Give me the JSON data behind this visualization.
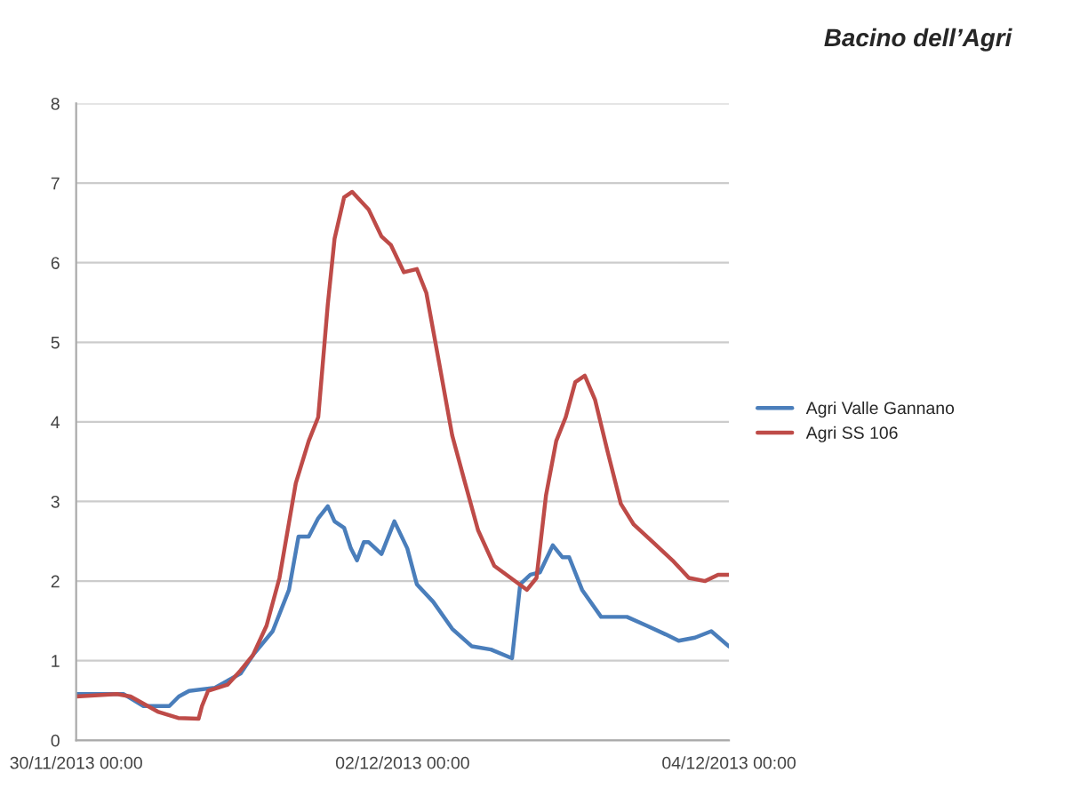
{
  "chart_data": {
    "type": "line",
    "title": "Bacino dell’Agri",
    "xlim": [
      "2013-11-30T00:00",
      "2013-12-04T00:00"
    ],
    "xticks": [
      {
        "value": "2013-11-30T00:00",
        "label": "30/11/2013 00:00"
      },
      {
        "value": "2013-12-02T00:00",
        "label": "02/12/2013 00:00"
      },
      {
        "value": "2013-12-04T00:00",
        "label": "04/12/2013 00:00"
      }
    ],
    "ylim": [
      0,
      8
    ],
    "yticks": [
      0,
      1,
      2,
      3,
      4,
      5,
      6,
      7,
      8
    ],
    "grid": "y",
    "legend": "right",
    "marker": "none",
    "line_style": "solid",
    "series": [
      {
        "name": "Agri Valle Gannano",
        "color": "#4a7ebb",
        "x": [
          "2013-11-30T00:00",
          "2013-11-30T07:00",
          "2013-11-30T09:54",
          "2013-11-30T13:42",
          "2013-11-30T15:06",
          "2013-11-30T16:36",
          "2013-11-30T20:24",
          "2013-12-01T00:12",
          "2013-12-01T02:00",
          "2013-12-01T04:54",
          "2013-12-01T07:18",
          "2013-12-01T08:42",
          "2013-12-01T10:12",
          "2013-12-01T11:36",
          "2013-12-01T13:00",
          "2013-12-01T14:00",
          "2013-12-01T15:24",
          "2013-12-01T16:24",
          "2013-12-01T17:18",
          "2013-12-01T18:18",
          "2013-12-01T19:00",
          "2013-12-01T20:54",
          "2013-12-01T22:48",
          "2013-12-02T00:42",
          "2013-12-02T02:06",
          "2013-12-02T04:30",
          "2013-12-02T07:18",
          "2013-12-02T10:12",
          "2013-12-02T13:00",
          "2013-12-02T16:06",
          "2013-12-02T17:18",
          "2013-12-02T18:48",
          "2013-12-02T20:12",
          "2013-12-02T22:06",
          "2013-12-02T23:30",
          "2013-12-03T00:30",
          "2013-12-03T02:24",
          "2013-12-03T05:12",
          "2013-12-03T09:00",
          "2013-12-03T11:54",
          "2013-12-03T14:42",
          "2013-12-03T16:36",
          "2013-12-03T19:00",
          "2013-12-03T21:24",
          "2013-12-04T00:00"
        ],
        "values": [
          0.58,
          0.58,
          0.43,
          0.43,
          0.55,
          0.62,
          0.66,
          0.84,
          1.07,
          1.37,
          1.89,
          2.56,
          2.56,
          2.79,
          2.94,
          2.75,
          2.67,
          2.41,
          2.26,
          2.49,
          2.49,
          2.34,
          2.75,
          2.41,
          1.96,
          1.74,
          1.4,
          1.18,
          1.14,
          1.03,
          1.96,
          2.08,
          2.11,
          2.45,
          2.3,
          2.3,
          1.89,
          1.55,
          1.55,
          1.44,
          1.33,
          1.25,
          1.29,
          1.37,
          1.18
        ]
      },
      {
        "name": "Agri SS 106",
        "color": "#be4b48",
        "x": [
          "2013-11-30T00:00",
          "2013-11-30T06:00",
          "2013-11-30T08:00",
          "2013-11-30T12:00",
          "2013-11-30T15:00",
          "2013-11-30T18:00",
          "2013-11-30T18:30",
          "2013-11-30T19:24",
          "2013-11-30T22:18",
          "2013-12-01T00:12",
          "2013-12-01T02:00",
          "2013-12-01T04:00",
          "2013-12-01T05:54",
          "2013-12-01T08:18",
          "2013-12-01T10:12",
          "2013-12-01T11:36",
          "2013-12-01T13:00",
          "2013-12-01T14:00",
          "2013-12-01T15:24",
          "2013-12-01T16:36",
          "2013-12-01T19:00",
          "2013-12-01T20:54",
          "2013-12-01T22:18",
          "2013-12-02T00:12",
          "2013-12-02T02:06",
          "2013-12-02T03:30",
          "2013-12-02T05:24",
          "2013-12-02T07:18",
          "2013-12-02T09:12",
          "2013-12-02T11:06",
          "2013-12-02T13:30",
          "2013-12-02T15:54",
          "2013-12-02T18:18",
          "2013-12-02T19:42",
          "2013-12-02T21:06",
          "2013-12-02T22:36",
          "2013-12-03T00:00",
          "2013-12-03T01:24",
          "2013-12-03T02:48",
          "2013-12-03T04:18",
          "2013-12-03T06:12",
          "2013-12-03T08:06",
          "2013-12-03T10:00",
          "2013-12-03T12:48",
          "2013-12-03T15:42",
          "2013-12-03T18:06",
          "2013-12-03T20:30",
          "2013-12-03T22:24",
          "2013-12-04T00:00"
        ],
        "values": [
          0.55,
          0.58,
          0.55,
          0.36,
          0.28,
          0.27,
          0.43,
          0.62,
          0.7,
          0.88,
          1.07,
          1.44,
          2.04,
          3.23,
          3.76,
          4.06,
          5.47,
          6.3,
          6.82,
          6.89,
          6.67,
          6.33,
          6.22,
          5.88,
          5.92,
          5.62,
          4.73,
          3.83,
          3.23,
          2.64,
          2.19,
          2.04,
          1.89,
          2.04,
          3.08,
          3.76,
          4.06,
          4.5,
          4.58,
          4.28,
          3.61,
          2.97,
          2.71,
          2.49,
          2.26,
          2.04,
          2.0,
          2.08,
          2.08
        ]
      }
    ]
  }
}
